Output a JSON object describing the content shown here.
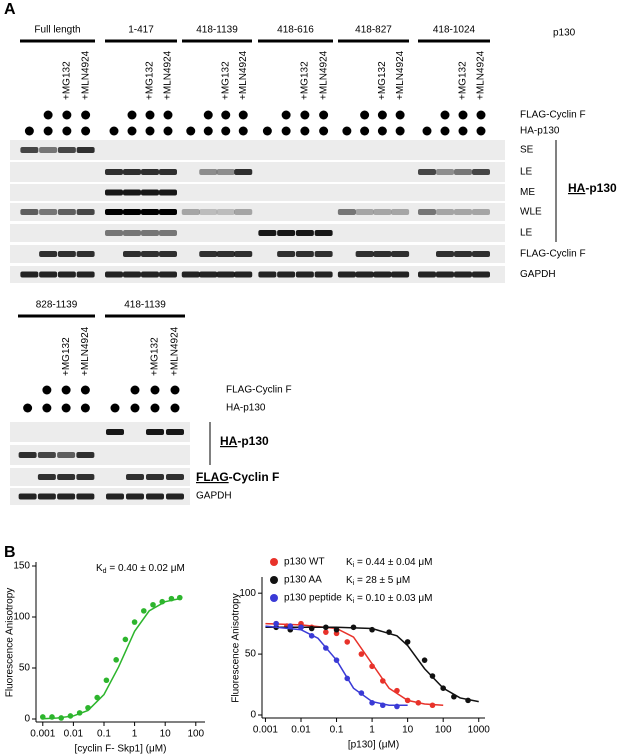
{
  "panel_a": {
    "label": "A",
    "top": {
      "constructs": [
        "Full length",
        "1-417",
        "418-1139",
        "418-616",
        "418-827",
        "418-1024"
      ],
      "protein": "p130",
      "treatments": [
        "+MG132",
        "+MLN4924"
      ],
      "dot_rows": [
        "FLAG-Cyclin F",
        "HA-p130"
      ],
      "blot_labels": [
        "SE",
        "LE",
        "ME",
        "WLE",
        "LE",
        "FLAG-Cyclin F",
        "GAPDH"
      ],
      "bracket": {
        "underlined": "HA",
        "rest": "-p130"
      }
    },
    "bottom": {
      "constructs": [
        "828-1139",
        "418-1139"
      ],
      "treatments": [
        "+MG132",
        "+MLN4924"
      ],
      "dot_rows": [
        "FLAG-Cyclin F",
        "HA-p130"
      ],
      "bracket": {
        "underlined": "HA",
        "rest": "-p130"
      },
      "flag": {
        "underlined": "FLAG",
        "rest": "-Cyclin F"
      },
      "blot_label": "GAPDH"
    }
  },
  "panel_b": {
    "label": "B"
  },
  "chart_data": [
    {
      "type": "scatter",
      "x_label": "[cyclin F- Skp1] (μM)",
      "y_label": "Fluorescence Anisotropy",
      "annotation": {
        "symbol": "K",
        "subscript": "d",
        "text": " = 0.40 ± 0.02 μM"
      },
      "xscale": "log",
      "xlim": [
        0.0006,
        200
      ],
      "xticks": [
        0.001,
        0.01,
        0.1,
        1,
        10,
        100
      ],
      "ylim": [
        0,
        150
      ],
      "yticks": [
        0,
        50,
        100,
        150
      ],
      "series": [
        {
          "color": "#2db52d",
          "x": [
            0.001,
            0.002,
            0.004,
            0.008,
            0.016,
            0.03,
            0.06,
            0.12,
            0.25,
            0.5,
            1,
            2,
            4,
            8,
            16,
            30
          ],
          "values": [
            2,
            2,
            1,
            3,
            6,
            11,
            21,
            38,
            58,
            78,
            95,
            106,
            112,
            115,
            118,
            119
          ],
          "fit_x": [
            0.001,
            0.003,
            0.01,
            0.03,
            0.1,
            0.3,
            1,
            3,
            10,
            30
          ],
          "fit_values": [
            0.3,
            1,
            3,
            8.4,
            24,
            51,
            86,
            106,
            115,
            118
          ]
        }
      ]
    },
    {
      "type": "scatter",
      "x_label": "[p130] (μM)",
      "y_label": "Fluorescence Anisotropy",
      "xscale": "log",
      "xlim": [
        0.0008,
        1500
      ],
      "xticks": [
        0.001,
        0.01,
        0.1,
        1,
        10,
        100,
        1000
      ],
      "ylim": [
        0,
        110
      ],
      "yticks": [
        0,
        50,
        100
      ],
      "series": [
        {
          "name": "p130 WT",
          "color": "#e8322a",
          "ki": {
            "symbol": "K",
            "subscript": "i",
            "text": " = 0.44 ± 0.04 μM"
          },
          "x": [
            0.002,
            0.004,
            0.01,
            0.02,
            0.05,
            0.1,
            0.2,
            0.5,
            1,
            2,
            5,
            10,
            20,
            50
          ],
          "values": [
            75,
            73,
            75,
            72,
            68,
            67,
            60,
            50,
            40,
            28,
            20,
            12,
            10,
            8
          ],
          "fit_x": [
            0.001,
            0.01,
            0.1,
            0.3,
            1,
            3,
            10,
            30,
            100
          ],
          "fit_values": [
            75,
            74,
            71,
            64,
            42,
            22,
            12,
            9,
            8
          ]
        },
        {
          "name": "p130 AA",
          "color": "#111111",
          "ki": {
            "symbol": "K",
            "subscript": "i",
            "text": " = 28 ± 5 μM"
          },
          "x": [
            0.002,
            0.005,
            0.01,
            0.02,
            0.05,
            0.1,
            0.3,
            1,
            3,
            10,
            30,
            50,
            100,
            200,
            500
          ],
          "values": [
            72,
            70,
            72,
            71,
            72,
            70,
            72,
            70,
            68,
            60,
            45,
            32,
            22,
            15,
            12
          ],
          "fit_x": [
            0.001,
            0.1,
            1,
            5,
            10,
            30,
            100,
            300,
            1000
          ],
          "fit_values": [
            72,
            72,
            71,
            65,
            57,
            38,
            22,
            14,
            11
          ]
        },
        {
          "name": "p130 peptide",
          "color": "#3a3ad6",
          "ki": {
            "symbol": "K",
            "subscript": "i",
            "text": " = 0.10 ± 0.03 μM"
          },
          "x": [
            0.002,
            0.005,
            0.01,
            0.02,
            0.05,
            0.1,
            0.2,
            0.5,
            1,
            2,
            5
          ],
          "values": [
            75,
            73,
            72,
            65,
            55,
            45,
            30,
            18,
            10,
            8,
            7
          ],
          "fit_x": [
            0.001,
            0.01,
            0.03,
            0.1,
            0.3,
            1,
            3,
            10
          ],
          "fit_values": [
            73,
            70,
            63,
            45,
            22,
            11,
            8,
            8
          ]
        }
      ]
    }
  ]
}
